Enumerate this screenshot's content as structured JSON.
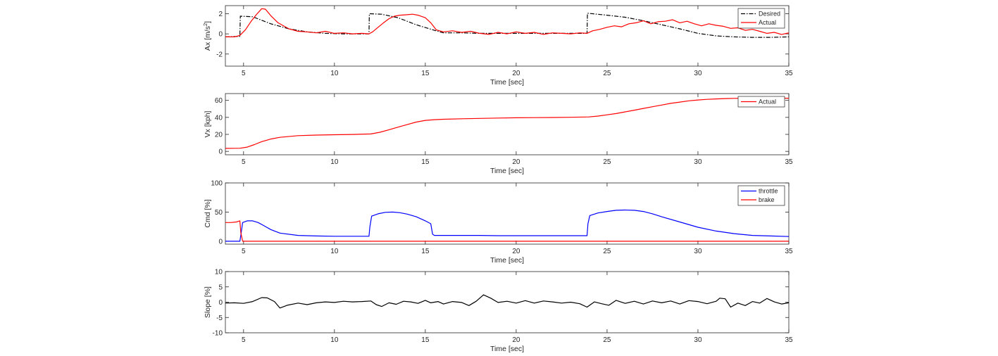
{
  "chart_data": [
    {
      "type": "line",
      "xlabel": "Time [sec]",
      "ylabel": "Ax [m/s",
      "ylabel_sup": "2",
      "ylabel_end": "]",
      "xlim": [
        4,
        35
      ],
      "ylim": [
        -3.2,
        2.8
      ],
      "xticks": [
        5,
        10,
        15,
        20,
        25,
        30,
        35
      ],
      "yticks": [
        -2,
        0,
        2
      ],
      "grid": false,
      "legend": "top-right",
      "series": [
        {
          "name": "Desired",
          "color": "#000000",
          "style": "dashdot",
          "x": [
            4.0,
            4.8,
            4.82,
            5.5,
            6.5,
            7.5,
            8.5,
            9.5,
            10.5,
            11.9,
            11.92,
            12.6,
            13.5,
            14.5,
            15.5,
            16.0,
            17,
            18,
            19,
            20,
            21,
            22,
            23,
            23.9,
            23.92,
            25,
            26,
            27,
            28,
            29,
            30,
            31,
            32,
            33,
            34,
            35
          ],
          "y": [
            -0.3,
            -0.25,
            1.75,
            1.7,
            1.0,
            0.5,
            0.2,
            0.05,
            0.0,
            0.0,
            2.0,
            1.95,
            1.6,
            0.9,
            0.35,
            0.1,
            0.1,
            0.05,
            0.05,
            0.05,
            0.05,
            0.05,
            0.05,
            0.05,
            2.05,
            1.85,
            1.65,
            1.3,
            0.9,
            0.5,
            0.05,
            -0.2,
            -0.3,
            -0.35,
            -0.35,
            -0.3
          ]
        },
        {
          "name": "Actual",
          "color": "#ff0000",
          "style": "solid",
          "x": [
            4.0,
            4.5,
            4.8,
            5.1,
            5.4,
            5.7,
            6.0,
            6.2,
            6.5,
            6.9,
            7.5,
            8.0,
            8.5,
            9.0,
            9.5,
            10.0,
            10.5,
            11.0,
            11.5,
            11.9,
            12.1,
            12.4,
            12.7,
            13.0,
            13.3,
            13.6,
            14.0,
            14.3,
            14.6,
            15.0,
            15.3,
            15.6,
            16.0,
            16.5,
            17.0,
            17.5,
            18.0,
            18.5,
            19.0,
            19.5,
            20.0,
            20.5,
            21.0,
            21.5,
            22.0,
            22.5,
            23.0,
            23.5,
            23.9,
            24.2,
            24.6,
            25.0,
            25.4,
            25.8,
            26.2,
            26.6,
            27.0,
            27.4,
            27.8,
            28.2,
            28.6,
            29.0,
            29.4,
            29.8,
            30.2,
            30.6,
            31.0,
            31.4,
            31.8,
            32.2,
            32.6,
            33.0,
            33.4,
            33.8,
            34.2,
            34.6,
            35.0
          ],
          "y": [
            -0.3,
            -0.3,
            -0.15,
            0.4,
            1.2,
            1.9,
            2.5,
            2.45,
            1.8,
            1.1,
            0.5,
            0.25,
            0.2,
            0.1,
            0.25,
            0.05,
            0.1,
            0.0,
            0.05,
            0.0,
            0.2,
            0.65,
            1.1,
            1.5,
            1.75,
            1.85,
            1.9,
            1.95,
            1.85,
            1.6,
            1.1,
            0.4,
            0.2,
            0.3,
            0.15,
            0.25,
            0.05,
            -0.05,
            0.15,
            0.0,
            0.2,
            0.05,
            0.15,
            -0.05,
            0.1,
            0.05,
            0.0,
            0.1,
            0.05,
            0.3,
            0.45,
            0.65,
            0.8,
            0.7,
            1.0,
            1.1,
            1.3,
            1.0,
            1.2,
            1.25,
            1.4,
            1.1,
            1.25,
            1.0,
            0.8,
            1.0,
            0.85,
            0.75,
            0.55,
            0.6,
            0.35,
            0.45,
            0.25,
            0.05,
            0.15,
            -0.05,
            0.1
          ]
        }
      ]
    },
    {
      "type": "line",
      "xlabel": "Time [sec]",
      "ylabel": "Vx [kph]",
      "xlim": [
        4,
        35
      ],
      "ylim": [
        -4,
        68
      ],
      "xticks": [
        5,
        10,
        15,
        20,
        25,
        30,
        35
      ],
      "yticks": [
        0,
        20,
        40,
        60
      ],
      "grid": false,
      "legend": "top-right",
      "series": [
        {
          "name": "Actual",
          "color": "#ff0000",
          "style": "solid",
          "x": [
            4.0,
            4.8,
            5.2,
            5.6,
            6.0,
            6.5,
            7.0,
            8.0,
            9.0,
            10.0,
            11.0,
            12.0,
            12.5,
            13.0,
            13.5,
            14.0,
            14.5,
            15.0,
            15.5,
            16.0,
            17.0,
            18.0,
            19.0,
            20.0,
            21.0,
            22.0,
            23.0,
            24.0,
            24.5,
            25.0,
            25.5,
            26.0,
            26.5,
            27.0,
            27.5,
            28.0,
            28.5,
            29.0,
            29.5,
            30.0,
            30.5,
            31.0,
            31.5,
            32.0,
            33.0,
            34.0,
            35.0
          ],
          "y": [
            3.5,
            3.7,
            5,
            8,
            11.5,
            14.5,
            16.5,
            18.5,
            19.2,
            19.6,
            19.9,
            20.5,
            22.5,
            25.5,
            28.5,
            31.5,
            34.5,
            36.5,
            37.3,
            37.8,
            38.4,
            38.8,
            39.2,
            39.5,
            39.7,
            39.9,
            40.1,
            40.5,
            41.5,
            43,
            44.5,
            46.5,
            48.5,
            50.5,
            52.5,
            54.5,
            56.5,
            58,
            59.5,
            60.5,
            61.2,
            61.7,
            62.1,
            62.4,
            62.6,
            62.6,
            62.5
          ]
        }
      ]
    },
    {
      "type": "line",
      "xlabel": "Time [sec]",
      "ylabel": "Cmd [%]",
      "xlim": [
        4,
        35
      ],
      "ylim": [
        -5,
        100
      ],
      "xticks": [
        5,
        10,
        15,
        20,
        25,
        30,
        35
      ],
      "yticks": [
        0,
        50,
        100
      ],
      "grid": false,
      "legend": "top-right",
      "series": [
        {
          "name": "throttle",
          "color": "#0000ff",
          "style": "solid",
          "x": [
            4.0,
            4.8,
            4.85,
            4.95,
            5.2,
            5.5,
            5.8,
            6.1,
            6.5,
            7.0,
            8.0,
            9.0,
            10.0,
            11.0,
            11.9,
            11.95,
            12.05,
            12.4,
            12.8,
            13.2,
            13.6,
            14.0,
            14.5,
            15.0,
            15.3,
            15.4,
            15.5,
            16.0,
            17.0,
            18.0,
            19.0,
            20.0,
            21.0,
            22.0,
            23.0,
            23.9,
            23.95,
            24.05,
            24.5,
            25.0,
            25.5,
            26.0,
            26.5,
            27.0,
            27.5,
            28.0,
            29.0,
            30.0,
            31.0,
            32.0,
            33.0,
            34.0,
            35.0
          ],
          "y": [
            0,
            0,
            10,
            32,
            35,
            35,
            32,
            27,
            20,
            14,
            10,
            9,
            8.5,
            8.5,
            8.5,
            25,
            43,
            47,
            49.5,
            50,
            49,
            46.5,
            42,
            35,
            30,
            12,
            10,
            10,
            10,
            10,
            9.5,
            9.5,
            9.5,
            9.5,
            9.5,
            9.5,
            30,
            44,
            48.5,
            51,
            53,
            53.5,
            53,
            51,
            47,
            42,
            33,
            24,
            17.5,
            13,
            10,
            9,
            8
          ]
        },
        {
          "name": "brake",
          "color": "#ff0000",
          "style": "solid",
          "x": [
            4.0,
            4.3,
            4.6,
            4.8,
            4.85,
            4.95,
            5.0,
            35.0
          ],
          "y": [
            32,
            32,
            33,
            35,
            15,
            0,
            0,
            0
          ]
        }
      ]
    },
    {
      "type": "line",
      "xlabel": "Time [sec]",
      "ylabel": "Slope [%]",
      "xlim": [
        4,
        35
      ],
      "ylim": [
        -10,
        10
      ],
      "xticks": [
        5,
        10,
        15,
        20,
        25,
        30,
        35
      ],
      "yticks": [
        -10,
        -5,
        0,
        5,
        10
      ],
      "grid": false,
      "legend": "none",
      "series": [
        {
          "color": "#000000",
          "style": "solid",
          "x": [
            4.0,
            4.5,
            5.0,
            5.5,
            6.0,
            6.3,
            6.7,
            7.0,
            7.4,
            8.0,
            8.5,
            9.0,
            9.5,
            10.0,
            10.5,
            11.0,
            11.5,
            12.0,
            12.3,
            12.6,
            13.0,
            13.4,
            13.8,
            14.2,
            14.6,
            15.0,
            15.3,
            15.7,
            16.0,
            16.5,
            17.0,
            17.4,
            17.8,
            18.2,
            18.6,
            19.0,
            19.5,
            20.0,
            20.5,
            21.0,
            21.5,
            22.0,
            22.5,
            23.0,
            23.5,
            23.9,
            24.3,
            24.7,
            25.1,
            25.5,
            26.0,
            26.5,
            27.0,
            27.5,
            28.0,
            28.5,
            29.0,
            29.5,
            30.0,
            30.5,
            31.0,
            31.2,
            31.5,
            31.8,
            32.2,
            32.6,
            33.0,
            33.4,
            33.8,
            34.2,
            34.6,
            35.0
          ],
          "y": [
            -0.3,
            -0.2,
            -0.4,
            0.2,
            1.5,
            1.4,
            0.2,
            -1.9,
            -1.0,
            -0.3,
            -0.8,
            -0.2,
            0.1,
            -0.1,
            0.3,
            0.1,
            0.2,
            0.4,
            -0.8,
            -1.4,
            -0.2,
            -0.7,
            0.3,
            0.1,
            -0.4,
            0.6,
            -0.2,
            0.2,
            -0.6,
            0.2,
            -0.1,
            -1.1,
            0.3,
            2.4,
            1.3,
            -0.1,
            0.3,
            -0.3,
            0.5,
            -0.3,
            0.4,
            0.1,
            -0.3,
            0.0,
            -0.5,
            -1.6,
            0.1,
            -0.5,
            -1.0,
            0.6,
            -0.4,
            0.3,
            -0.6,
            0.4,
            -0.2,
            0.4,
            -0.6,
            0.5,
            0.2,
            -0.5,
            0.3,
            1.3,
            1.1,
            -1.6,
            -0.3,
            -1.1,
            0.2,
            -0.3,
            1.2,
            0.1,
            -0.6,
            -0.2
          ]
        }
      ]
    }
  ]
}
